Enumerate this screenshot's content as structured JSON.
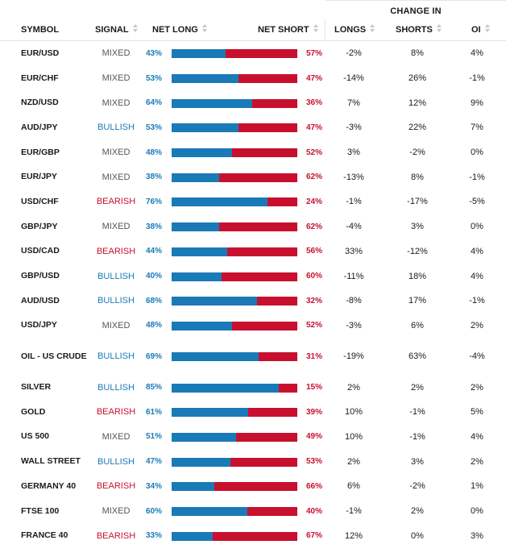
{
  "header": {
    "change_in": "CHANGE IN",
    "symbol": "SYMBOL",
    "signal": "SIGNAL",
    "net_long": "NET LONG",
    "net_short": "NET SHORT",
    "longs": "LONGS",
    "shorts": "SHORTS",
    "oi": "OI"
  },
  "colors": {
    "long": "#1a7ab8",
    "short": "#c8102e",
    "bullish": "#1a7ab8",
    "bearish": "#c8102e",
    "mixed": "#555555"
  },
  "rows": [
    {
      "symbol": "EUR/USD",
      "signal": "MIXED",
      "net_long": "43%",
      "net_short": "57%",
      "long_value": 43,
      "longs": "-2%",
      "shorts": "8%",
      "oi": "4%"
    },
    {
      "symbol": "EUR/CHF",
      "signal": "MIXED",
      "net_long": "53%",
      "net_short": "47%",
      "long_value": 53,
      "longs": "-14%",
      "shorts": "26%",
      "oi": "-1%"
    },
    {
      "symbol": "NZD/USD",
      "signal": "MIXED",
      "net_long": "64%",
      "net_short": "36%",
      "long_value": 64,
      "longs": "7%",
      "shorts": "12%",
      "oi": "9%"
    },
    {
      "symbol": "AUD/JPY",
      "signal": "BULLISH",
      "net_long": "53%",
      "net_short": "47%",
      "long_value": 53,
      "longs": "-3%",
      "shorts": "22%",
      "oi": "7%"
    },
    {
      "symbol": "EUR/GBP",
      "signal": "MIXED",
      "net_long": "48%",
      "net_short": "52%",
      "long_value": 48,
      "longs": "3%",
      "shorts": "-2%",
      "oi": "0%"
    },
    {
      "symbol": "EUR/JPY",
      "signal": "MIXED",
      "net_long": "38%",
      "net_short": "62%",
      "long_value": 38,
      "longs": "-13%",
      "shorts": "8%",
      "oi": "-1%"
    },
    {
      "symbol": "USD/CHF",
      "signal": "BEARISH",
      "net_long": "76%",
      "net_short": "24%",
      "long_value": 76,
      "longs": "-1%",
      "shorts": "-17%",
      "oi": "-5%"
    },
    {
      "symbol": "GBP/JPY",
      "signal": "MIXED",
      "net_long": "38%",
      "net_short": "62%",
      "long_value": 38,
      "longs": "-4%",
      "shorts": "3%",
      "oi": "0%"
    },
    {
      "symbol": "USD/CAD",
      "signal": "BEARISH",
      "net_long": "44%",
      "net_short": "56%",
      "long_value": 44,
      "longs": "33%",
      "shorts": "-12%",
      "oi": "4%"
    },
    {
      "symbol": "GBP/USD",
      "signal": "BULLISH",
      "net_long": "40%",
      "net_short": "60%",
      "long_value": 40,
      "longs": "-11%",
      "shorts": "18%",
      "oi": "4%"
    },
    {
      "symbol": "AUD/USD",
      "signal": "BULLISH",
      "net_long": "68%",
      "net_short": "32%",
      "long_value": 68,
      "longs": "-8%",
      "shorts": "17%",
      "oi": "-1%"
    },
    {
      "symbol": "USD/JPY",
      "signal": "MIXED",
      "net_long": "48%",
      "net_short": "52%",
      "long_value": 48,
      "longs": "-3%",
      "shorts": "6%",
      "oi": "2%"
    },
    {
      "symbol": "OIL - US CRUDE",
      "signal": "BULLISH",
      "net_long": "69%",
      "net_short": "31%",
      "long_value": 69,
      "longs": "-19%",
      "shorts": "63%",
      "oi": "-4%",
      "tall": true
    },
    {
      "symbol": "SILVER",
      "signal": "BULLISH",
      "net_long": "85%",
      "net_short": "15%",
      "long_value": 85,
      "longs": "2%",
      "shorts": "2%",
      "oi": "2%"
    },
    {
      "symbol": "GOLD",
      "signal": "BEARISH",
      "net_long": "61%",
      "net_short": "39%",
      "long_value": 61,
      "longs": "10%",
      "shorts": "-1%",
      "oi": "5%"
    },
    {
      "symbol": "US 500",
      "signal": "MIXED",
      "net_long": "51%",
      "net_short": "49%",
      "long_value": 51,
      "longs": "10%",
      "shorts": "-1%",
      "oi": "4%"
    },
    {
      "symbol": "WALL STREET",
      "signal": "BULLISH",
      "net_long": "47%",
      "net_short": "53%",
      "long_value": 47,
      "longs": "2%",
      "shorts": "3%",
      "oi": "2%"
    },
    {
      "symbol": "GERMANY 40",
      "signal": "BEARISH",
      "net_long": "34%",
      "net_short": "66%",
      "long_value": 34,
      "longs": "6%",
      "shorts": "-2%",
      "oi": "1%"
    },
    {
      "symbol": "FTSE 100",
      "signal": "MIXED",
      "net_long": "60%",
      "net_short": "40%",
      "long_value": 60,
      "longs": "-1%",
      "shorts": "2%",
      "oi": "0%"
    },
    {
      "symbol": "FRANCE 40",
      "signal": "BEARISH",
      "net_long": "33%",
      "net_short": "67%",
      "long_value": 33,
      "longs": "12%",
      "shorts": "0%",
      "oi": "3%"
    }
  ]
}
